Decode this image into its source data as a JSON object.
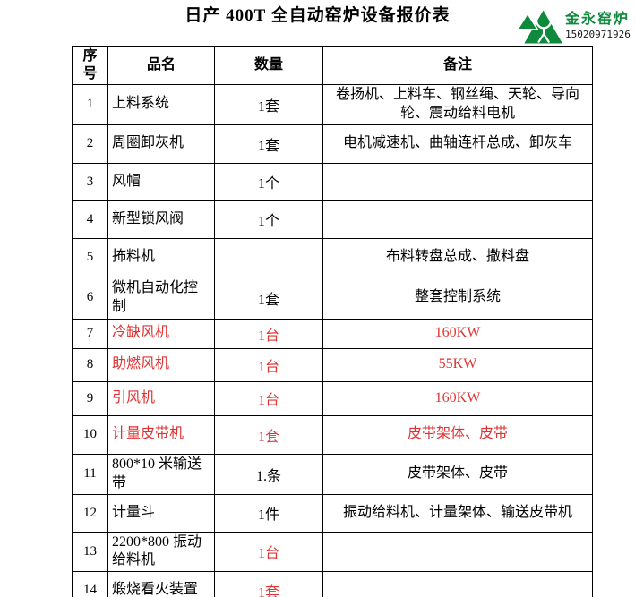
{
  "page": {
    "title": "日产 400T 全自动窑炉设备报价表"
  },
  "logo": {
    "company": "金永窑炉",
    "phone": "15020971926"
  },
  "colors": {
    "highlight_red": "#e03232",
    "logo_green": "#0f8a3d",
    "text_black": "#000000"
  },
  "table": {
    "headers": [
      "序号",
      "品名",
      "数量",
      "备注"
    ],
    "rows": [
      {
        "no": "1",
        "name": "上料系统",
        "qty": "1套",
        "remark": "卷扬机、上料车、钢丝绳、天轮、导向轮、震动给料电机",
        "red_cells": []
      },
      {
        "no": "2",
        "name": "周圈卸灰机",
        "qty": "1套",
        "remark": "电机减速机、曲轴连杆总成、卸灰车",
        "red_cells": []
      },
      {
        "no": "3",
        "name": "风帽",
        "qty": "1个",
        "remark": "",
        "red_cells": []
      },
      {
        "no": "4",
        "name": "新型锁风阀",
        "qty": "1个",
        "remark": "",
        "red_cells": []
      },
      {
        "no": "5",
        "name": "抪料机",
        "qty": "",
        "remark": "布料转盘总成、撒料盘",
        "red_cells": []
      },
      {
        "no": "6",
        "name": "微机自动化控制",
        "qty": "1套",
        "remark": "整套控制系统",
        "red_cells": []
      },
      {
        "no": "7",
        "name": "冷缺风机",
        "qty": "1台",
        "remark": "160KW",
        "red_cells": [
          "name",
          "qty",
          "remark"
        ]
      },
      {
        "no": "8",
        "name": "助燃风机",
        "qty": "1台",
        "remark": "55KW",
        "red_cells": [
          "name",
          "qty",
          "remark"
        ]
      },
      {
        "no": "9",
        "name": "引风机",
        "qty": "1台",
        "remark": "160KW",
        "red_cells": [
          "name",
          "qty",
          "remark"
        ]
      },
      {
        "no": "10",
        "name": "计量皮带机",
        "qty": "1套",
        "remark": "皮带架体、皮带",
        "red_cells": [
          "name",
          "qty",
          "remark"
        ]
      },
      {
        "no": "11",
        "name": "800*10 米输送带",
        "qty": "1.条",
        "remark": "皮带架体、皮带",
        "red_cells": []
      },
      {
        "no": "12",
        "name": "计量斗",
        "qty": "1件",
        "remark": "振动给料机、计量架体、输送皮带机",
        "red_cells": []
      },
      {
        "no": "13",
        "name": "2200*800 振动给料机",
        "qty": "1台",
        "remark": "",
        "red_cells": [
          "qty"
        ]
      },
      {
        "no": "14",
        "name": "煅烧看火装置",
        "qty": "1套",
        "remark": "",
        "red_cells": [
          "qty"
        ]
      }
    ]
  }
}
